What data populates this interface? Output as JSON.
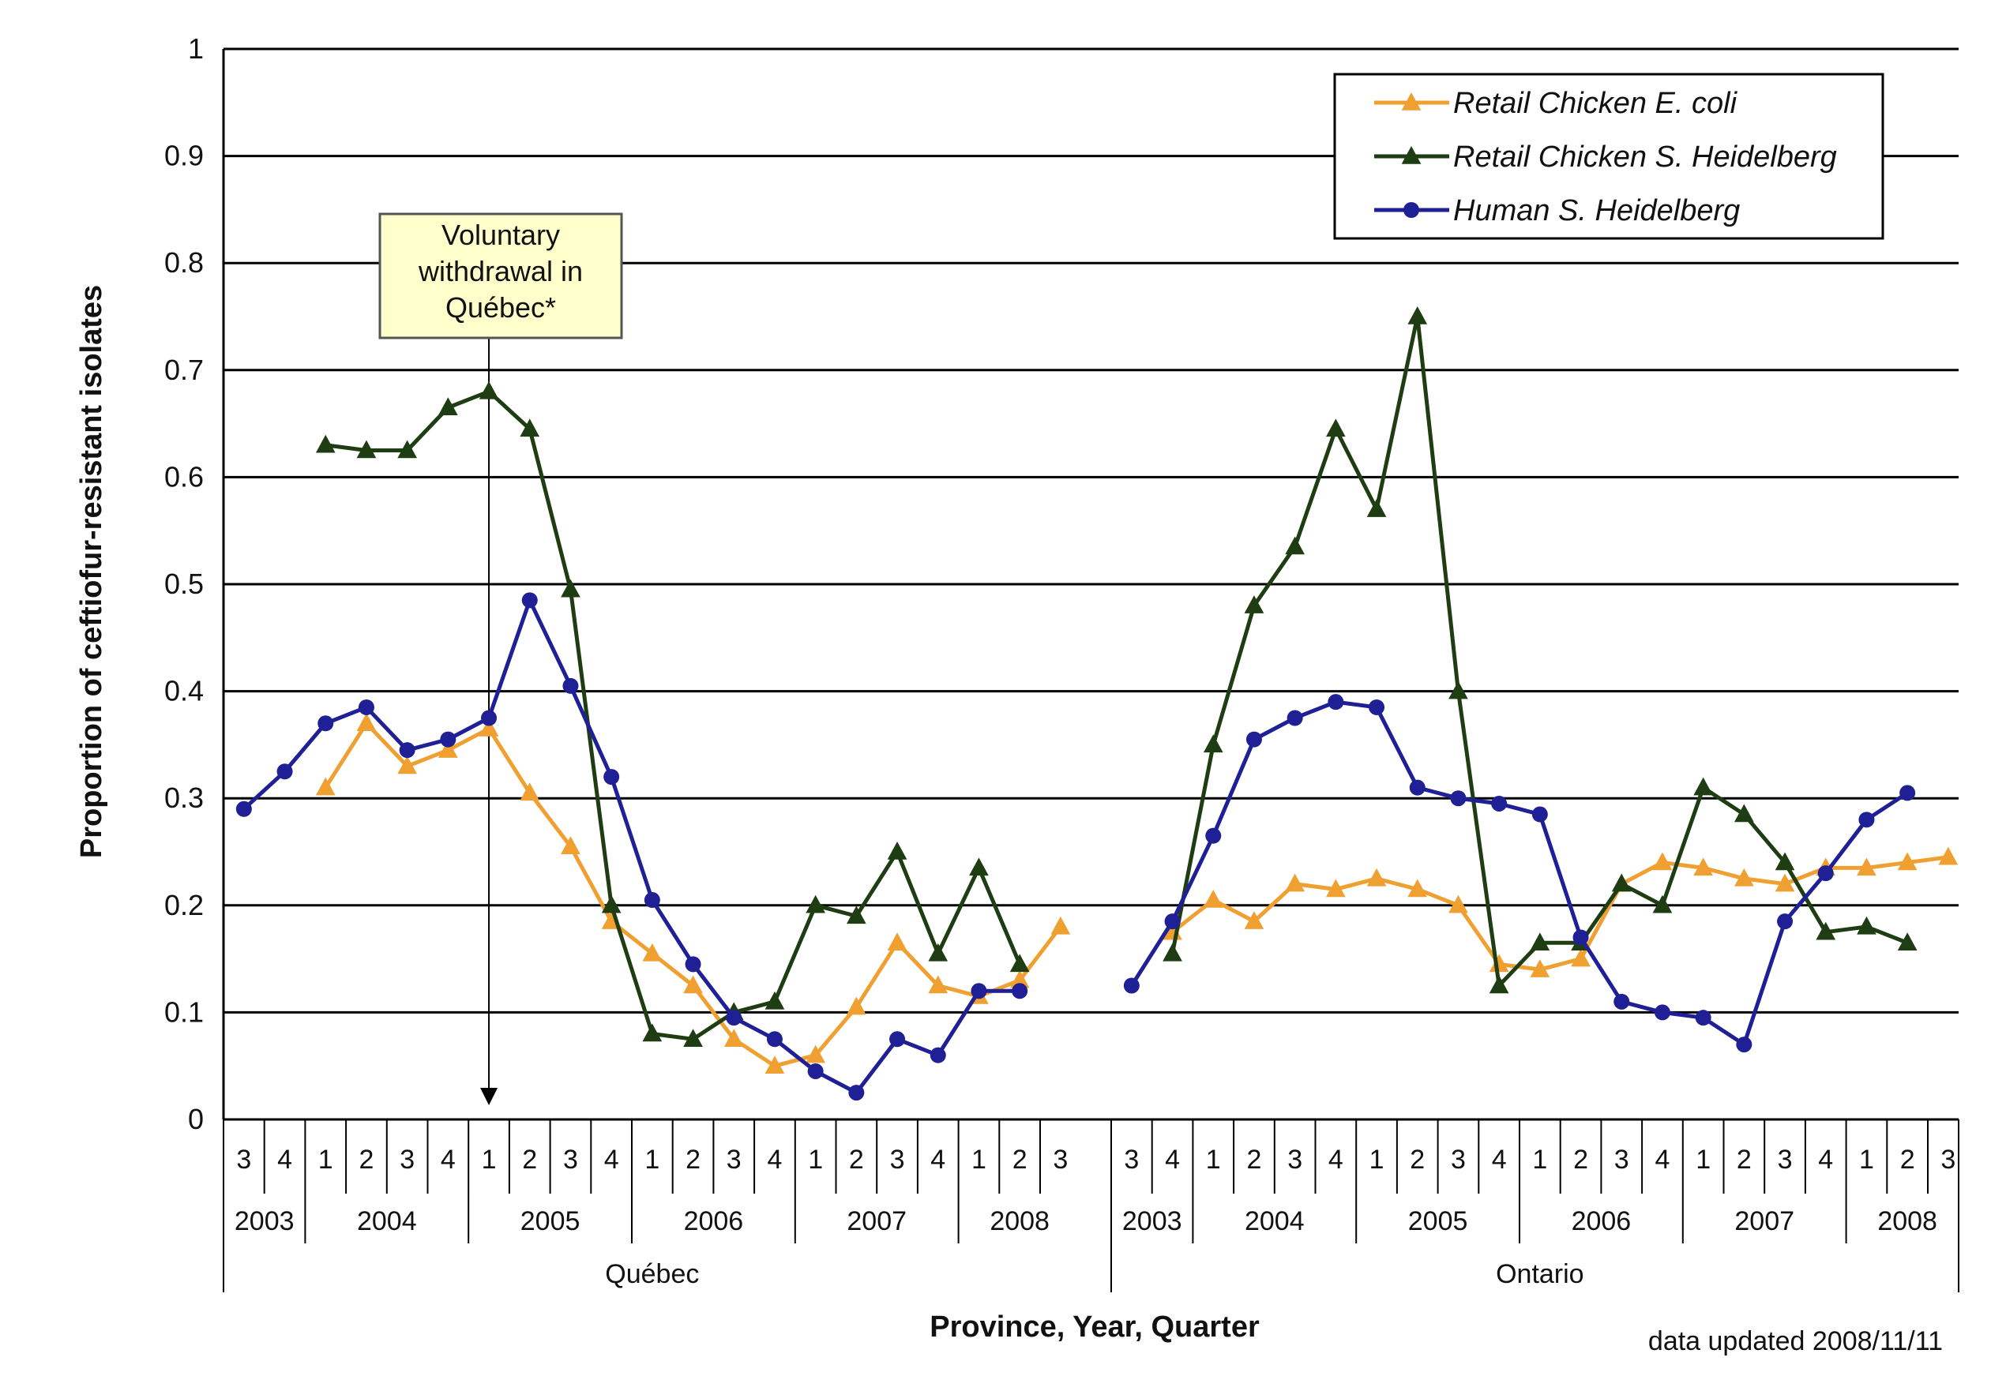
{
  "chart_data": {
    "type": "line",
    "title": "",
    "ylabel": "Proportion of ceftiofur-resistant isolates",
    "xlabel": "Province, Year, Quarter",
    "ylim": [
      0,
      1
    ],
    "yticks": [
      "0",
      "0.1",
      "0.2",
      "0.3",
      "0.4",
      "0.5",
      "0.6",
      "0.7",
      "0.8",
      "0.9",
      "1"
    ],
    "grid": true,
    "legend_position": "top-right",
    "note": "data updated 2008/11/11",
    "annotation": {
      "lines": [
        "Voluntary",
        "withdrawal in",
        "Québec*"
      ],
      "category_index": 6
    },
    "categories": [
      "Q-2003-3",
      "Q-2003-4",
      "Q-2004-1",
      "Q-2004-2",
      "Q-2004-3",
      "Q-2004-4",
      "Q-2005-1",
      "Q-2005-2",
      "Q-2005-3",
      "Q-2005-4",
      "Q-2006-1",
      "Q-2006-2",
      "Q-2006-3",
      "Q-2006-4",
      "Q-2007-1",
      "Q-2007-2",
      "Q-2007-3",
      "Q-2007-4",
      "Q-2008-1",
      "Q-2008-2",
      "Q-2008-3",
      "O-2003-3",
      "O-2003-4",
      "O-2004-1",
      "O-2004-2",
      "O-2004-3",
      "O-2004-4",
      "O-2005-1",
      "O-2005-2",
      "O-2005-3",
      "O-2005-4",
      "O-2006-1",
      "O-2006-2",
      "O-2006-3",
      "O-2006-4",
      "O-2007-1",
      "O-2007-2",
      "O-2007-3",
      "O-2007-4",
      "O-2008-1",
      "O-2008-2",
      "O-2008-3"
    ],
    "provinces": [
      {
        "name": "Québec",
        "years": [
          {
            "year": "2003",
            "quarters": [
              "3",
              "4"
            ]
          },
          {
            "year": "2004",
            "quarters": [
              "1",
              "2",
              "3",
              "4"
            ]
          },
          {
            "year": "2005",
            "quarters": [
              "1",
              "2",
              "3",
              "4"
            ]
          },
          {
            "year": "2006",
            "quarters": [
              "1",
              "2",
              "3",
              "4"
            ]
          },
          {
            "year": "2007",
            "quarters": [
              "1",
              "2",
              "3",
              "4"
            ]
          },
          {
            "year": "2008",
            "quarters": [
              "1",
              "2",
              "3"
            ]
          }
        ]
      },
      {
        "name": "Ontario",
        "years": [
          {
            "year": "2003",
            "quarters": [
              "3",
              "4"
            ]
          },
          {
            "year": "2004",
            "quarters": [
              "1",
              "2",
              "3",
              "4"
            ]
          },
          {
            "year": "2005",
            "quarters": [
              "1",
              "2",
              "3",
              "4"
            ]
          },
          {
            "year": "2006",
            "quarters": [
              "1",
              "2",
              "3",
              "4"
            ]
          },
          {
            "year": "2007",
            "quarters": [
              "1",
              "2",
              "3",
              "4"
            ]
          },
          {
            "year": "2008",
            "quarters": [
              "1",
              "2",
              "3"
            ]
          }
        ]
      }
    ],
    "series": [
      {
        "name": "Retail Chicken E. coli",
        "color": "#f0a030",
        "marker": "triangle",
        "values": [
          null,
          null,
          0.31,
          0.37,
          0.33,
          0.345,
          0.365,
          0.305,
          0.255,
          0.185,
          0.155,
          0.125,
          0.075,
          0.05,
          0.06,
          0.105,
          0.165,
          0.125,
          0.115,
          0.13,
          0.18,
          null,
          0.175,
          0.205,
          0.185,
          0.22,
          0.215,
          0.225,
          0.215,
          0.2,
          0.145,
          0.14,
          0.15,
          0.22,
          0.24,
          0.235,
          0.225,
          0.22,
          0.235,
          0.235,
          0.24,
          0.245
        ]
      },
      {
        "name": "Retail Chicken S. Heidelberg",
        "color": "#1e3d12",
        "marker": "triangle",
        "values": [
          null,
          null,
          0.63,
          0.625,
          0.625,
          0.665,
          0.68,
          0.645,
          0.495,
          0.2,
          0.08,
          0.075,
          0.1,
          0.11,
          0.2,
          0.19,
          0.25,
          0.155,
          0.235,
          0.145,
          null,
          null,
          0.155,
          0.35,
          0.48,
          0.535,
          0.645,
          0.57,
          0.75,
          0.4,
          0.125,
          0.165,
          0.165,
          0.22,
          0.2,
          0.31,
          0.285,
          0.24,
          0.175,
          0.18,
          0.165,
          null
        ]
      },
      {
        "name": "Human S. Heidelberg",
        "color": "#1f1f96",
        "marker": "circle",
        "values": [
          0.29,
          0.325,
          0.37,
          0.385,
          0.345,
          0.355,
          0.375,
          0.485,
          0.405,
          0.32,
          0.205,
          0.145,
          0.095,
          0.075,
          0.045,
          0.025,
          0.075,
          0.06,
          0.12,
          0.12,
          null,
          0.125,
          0.185,
          0.265,
          0.355,
          0.375,
          0.39,
          0.385,
          0.31,
          0.3,
          0.295,
          0.285,
          0.17,
          0.11,
          0.1,
          0.095,
          0.07,
          0.185,
          0.23,
          0.28,
          0.305,
          null
        ]
      }
    ]
  }
}
